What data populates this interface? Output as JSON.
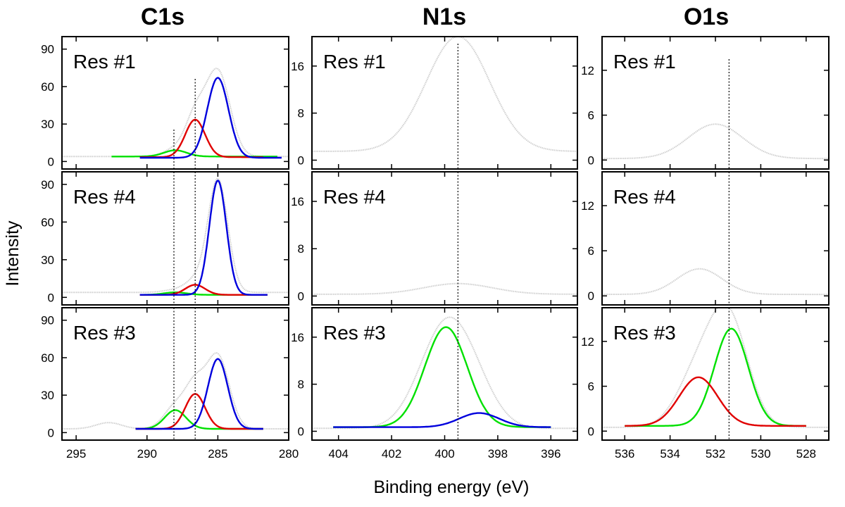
{
  "chart_data": {
    "type": "line",
    "ylabel": "Intensity",
    "xlabel": "Binding energy (eV)",
    "colors": {
      "ref": "#cfcfcf",
      "green": "#00e000",
      "red": "#e00000",
      "blue": "#0000dd",
      "frame": "#000000"
    },
    "columns": [
      {
        "title": "C1s",
        "xlim": [
          296,
          280
        ],
        "ylim": [
          -6,
          100
        ],
        "xticks": [
          295,
          290,
          285,
          280
        ],
        "xtick_labels": [
          "295",
          "290",
          "285",
          "280"
        ],
        "yticks": [
          0,
          30,
          60,
          90
        ],
        "ytick_labels": [
          "0",
          "30",
          "60",
          "90"
        ],
        "dotted_lines_x": [
          288.1,
          286.6
        ],
        "panels": [
          {
            "label": "Res #1",
            "reference": {
              "baseline": 4,
              "peaks": [
                [
                  285.0,
                  68,
                  0.85
                ],
                [
                  286.6,
                  30,
                  0.7
                ],
                [
                  288.0,
                  6,
                  0.8
                ]
              ]
            },
            "components": [
              {
                "name": "green",
                "x_range": [
                  292.5,
                  280.8
                ],
                "baseline": 4,
                "amp": 5,
                "center": 288.0,
                "width": 0.8
              },
              {
                "name": "red",
                "x_range": [
                  290.5,
                  281.8
                ],
                "baseline": 3.5,
                "amp": 30,
                "center": 286.6,
                "width": 0.7
              },
              {
                "name": "blue",
                "x_range": [
                  290.5,
                  280.5
                ],
                "baseline": 3,
                "amp": 64,
                "center": 285.0,
                "width": 0.75
              }
            ]
          },
          {
            "label": "Res #4",
            "reference": {
              "baseline": 4,
              "peaks": [
                [
                  285.0,
                  90,
                  0.7
                ],
                [
                  286.6,
                  9,
                  0.7
                ],
                [
                  288.0,
                  2,
                  0.8
                ]
              ]
            },
            "components": [
              {
                "name": "green",
                "x_range": [
                  290.5,
                  281.5
                ],
                "baseline": 2,
                "amp": 2,
                "center": 288.0,
                "width": 0.8
              },
              {
                "name": "red",
                "x_range": [
                  290.5,
                  281.5
                ],
                "baseline": 2,
                "amp": 8,
                "center": 286.6,
                "width": 0.7
              },
              {
                "name": "blue",
                "x_range": [
                  290.5,
                  281.5
                ],
                "baseline": 2,
                "amp": 91,
                "center": 285.0,
                "width": 0.6
              }
            ]
          },
          {
            "label": "Res #3",
            "reference": {
              "baseline": 3,
              "peaks": [
                [
                  285.0,
                  58,
                  0.8
                ],
                [
                  286.6,
                  32,
                  0.7
                ],
                [
                  288.0,
                  18,
                  0.8
                ],
                [
                  292.7,
                  5,
                  0.9
                ]
              ]
            },
            "components": [
              {
                "name": "green",
                "x_range": [
                  290.8,
                  281.8
                ],
                "baseline": 3,
                "amp": 15,
                "center": 288.0,
                "width": 0.75
              },
              {
                "name": "red",
                "x_range": [
                  290.8,
                  281.8
                ],
                "baseline": 3,
                "amp": 28,
                "center": 286.6,
                "width": 0.7
              },
              {
                "name": "blue",
                "x_range": [
                  290.8,
                  281.8
                ],
                "baseline": 3,
                "amp": 56,
                "center": 285.0,
                "width": 0.7
              }
            ]
          }
        ]
      },
      {
        "title": "N1s",
        "xlim": [
          405,
          395
        ],
        "ylim": [
          -1.5,
          21
        ],
        "xticks": [
          404,
          402,
          400,
          398,
          396
        ],
        "xtick_labels": [
          "404",
          "402",
          "400",
          "398",
          "396"
        ],
        "yticks": [
          0,
          8,
          16
        ],
        "ytick_labels": [
          "0",
          "8",
          "16"
        ],
        "dotted_lines_x": [
          399.5
        ],
        "panels": [
          {
            "label": "Res #1",
            "reference": {
              "baseline": 1.5,
              "peaks": [
                [
                  399.5,
                  19.5,
                  1.2
                ]
              ]
            },
            "components": []
          },
          {
            "label": "Res #4",
            "reference": {
              "baseline": 0.3,
              "peaks": [
                [
                  399.5,
                  1.8,
                  1.3
                ]
              ]
            },
            "components": []
          },
          {
            "label": "Res #3",
            "reference": {
              "baseline": 0.5,
              "peaks": [
                [
                  399.9,
                  18,
                  1.0
                ],
                [
                  398.7,
                  2.5,
                  0.8
                ]
              ]
            },
            "components": [
              {
                "name": "green",
                "x_range": [
                  404.2,
                  396.0
                ],
                "baseline": 0.7,
                "amp": 17,
                "center": 399.95,
                "width": 0.8
              },
              {
                "name": "blue",
                "x_range": [
                  404.2,
                  396.0
                ],
                "baseline": 0.7,
                "amp": 2.4,
                "center": 398.7,
                "width": 0.75
              }
            ]
          }
        ]
      },
      {
        "title": "O1s",
        "xlim": [
          537,
          527
        ],
        "ylim": [
          -1.2,
          16.5
        ],
        "xticks": [
          536,
          534,
          532,
          530,
          528
        ],
        "xtick_labels": [
          "536",
          "534",
          "532",
          "530",
          "528"
        ],
        "yticks": [
          0,
          6,
          12
        ],
        "ytick_labels": [
          "0",
          "6",
          "12"
        ],
        "dotted_lines_x": [
          531.4
        ],
        "panels": [
          {
            "label": "Res #1",
            "reference": {
              "baseline": 0.2,
              "peaks": [
                [
                  532.0,
                  4.6,
                  1.2
                ]
              ]
            },
            "components": []
          },
          {
            "label": "Res #4",
            "reference": {
              "baseline": 0.2,
              "peaks": [
                [
                  532.7,
                  3.4,
                  1.0
                ]
              ]
            },
            "components": []
          },
          {
            "label": "Res #3",
            "reference": {
              "baseline": 0.5,
              "peaks": [
                [
                  531.4,
                  14,
                  0.85
                ],
                [
                  532.8,
                  7,
                  0.9
                ]
              ]
            },
            "components": [
              {
                "name": "green",
                "x_range": [
                  536.0,
                  528.0
                ],
                "baseline": 0.7,
                "amp": 13,
                "center": 531.3,
                "width": 0.75
              },
              {
                "name": "red",
                "x_range": [
                  536.0,
                  528.0
                ],
                "baseline": 0.7,
                "amp": 6.5,
                "center": 532.75,
                "width": 0.85
              }
            ]
          }
        ]
      }
    ]
  }
}
